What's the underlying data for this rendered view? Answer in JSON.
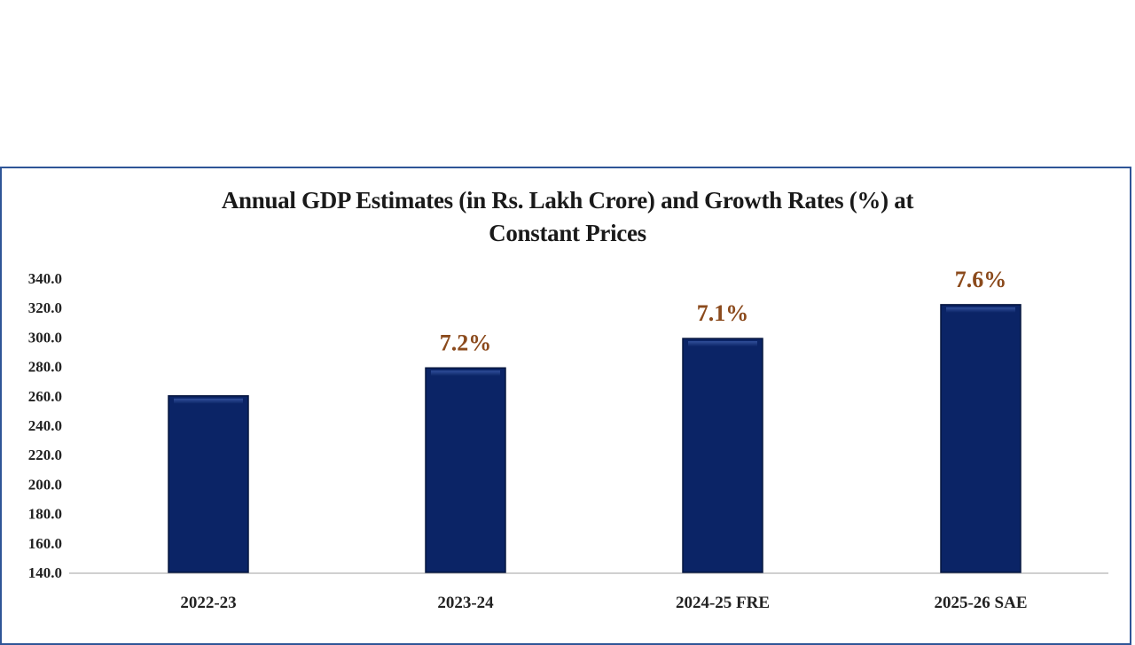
{
  "chart_data": {
    "type": "bar",
    "title": "Annual GDP Estimates (in Rs. Lakh Crore) and Growth Rates (%) at Constant Prices",
    "title_lines": [
      "Annual GDP Estimates (in Rs. Lakh Crore) and Growth Rates (%) at",
      "Constant Prices"
    ],
    "categories": [
      "2022-23",
      "2023-24",
      "2024-25 FRE",
      "2025-26 SAE"
    ],
    "values": [
      260.0,
      279.0,
      299.0,
      322.0
    ],
    "data_labels": [
      "",
      "7.2%",
      "7.1%",
      "7.6%"
    ],
    "xlabel": "",
    "ylabel": "",
    "ylim": [
      140,
      340
    ],
    "yticks": [
      "140.0",
      "160.0",
      "180.0",
      "200.0",
      "220.0",
      "240.0",
      "260.0",
      "280.0",
      "300.0",
      "320.0",
      "340.0"
    ],
    "grid": false,
    "legend": "none",
    "colors": {
      "bar": "#0b2466",
      "label": "#8b4a1c",
      "frame": "#2f5597",
      "axis": "#d0d0d0"
    }
  }
}
